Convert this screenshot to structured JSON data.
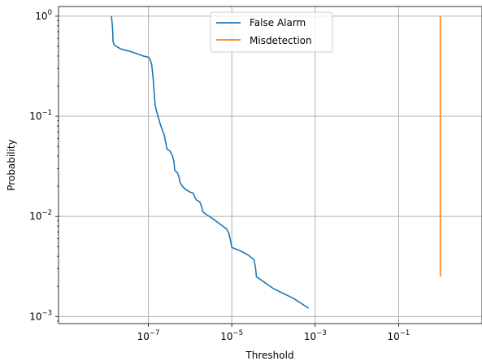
{
  "chart_data": {
    "type": "line",
    "xlabel": "Threshold",
    "ylabel": "Probability",
    "xscale": "log",
    "yscale": "log",
    "xlim": [
      7e-10,
      10
    ],
    "ylim": [
      0.00085,
      1.25
    ],
    "grid": true,
    "legend_position": "top-center",
    "x_ticks": [
      {
        "value": 1e-07,
        "base": "10",
        "exp": "−7"
      },
      {
        "value": 1e-05,
        "base": "10",
        "exp": "−5"
      },
      {
        "value": 0.001,
        "base": "10",
        "exp": "−3"
      },
      {
        "value": 0.1,
        "base": "10",
        "exp": "−1"
      }
    ],
    "y_ticks": [
      {
        "value": 0.001,
        "base": "10",
        "exp": "−3"
      },
      {
        "value": 0.01,
        "base": "10",
        "exp": "−2"
      },
      {
        "value": 0.1,
        "base": "10",
        "exp": "−1"
      },
      {
        "value": 1,
        "base": "10",
        "exp": "0"
      }
    ],
    "series": [
      {
        "name": "False Alarm",
        "color": "#1f77b4",
        "points": [
          [
            1.3e-08,
            1.0
          ],
          [
            1.38e-08,
            0.78
          ],
          [
            1.42e-08,
            0.56
          ],
          [
            1.5e-08,
            0.52
          ],
          [
            1.7e-08,
            0.5
          ],
          [
            2.2e-08,
            0.47
          ],
          [
            3e-08,
            0.455
          ],
          [
            4e-08,
            0.44
          ],
          [
            5.5e-08,
            0.42
          ],
          [
            7.5e-08,
            0.4
          ],
          [
            1e-07,
            0.39
          ],
          [
            1.1e-07,
            0.37
          ],
          [
            1.2e-07,
            0.33
          ],
          [
            1.3e-07,
            0.24
          ],
          [
            1.38e-07,
            0.17
          ],
          [
            1.45e-07,
            0.13
          ],
          [
            1.55e-07,
            0.115
          ],
          [
            1.7e-07,
            0.1
          ],
          [
            1.9e-07,
            0.085
          ],
          [
            2.1e-07,
            0.075
          ],
          [
            2.4e-07,
            0.065
          ],
          [
            2.6e-07,
            0.055
          ],
          [
            2.8e-07,
            0.047
          ],
          [
            3.3e-07,
            0.045
          ],
          [
            3.8e-07,
            0.04
          ],
          [
            4.1e-07,
            0.035
          ],
          [
            4.3e-07,
            0.029
          ],
          [
            5e-07,
            0.027
          ],
          [
            5.4e-07,
            0.025
          ],
          [
            5.7e-07,
            0.022
          ],
          [
            6.5e-07,
            0.02
          ],
          [
            8e-07,
            0.0185
          ],
          [
            1e-06,
            0.0175
          ],
          [
            1.2e-06,
            0.017
          ],
          [
            1.3e-06,
            0.0155
          ],
          [
            1.45e-06,
            0.0145
          ],
          [
            1.7e-06,
            0.014
          ],
          [
            1.9e-06,
            0.0125
          ],
          [
            2e-06,
            0.0112
          ],
          [
            2.4e-06,
            0.0105
          ],
          [
            3.5e-06,
            0.0095
          ],
          [
            5e-06,
            0.0085
          ],
          [
            7.5e-06,
            0.0075
          ],
          [
            8.5e-06,
            0.0068
          ],
          [
            9.5e-06,
            0.0055
          ],
          [
            1e-05,
            0.0049
          ],
          [
            1.5e-05,
            0.0046
          ],
          [
            2.5e-05,
            0.0041
          ],
          [
            3.4e-05,
            0.0037
          ],
          [
            3.7e-05,
            0.0031
          ],
          [
            3.9e-05,
            0.0025
          ],
          [
            0.0001,
            0.0019
          ],
          [
            0.0003,
            0.00152
          ],
          [
            0.0007,
            0.00121
          ]
        ]
      },
      {
        "name": "Misdetection",
        "color": "#ff7f0e",
        "points": [
          [
            1.0,
            0.0025
          ],
          [
            1.0,
            1.0
          ]
        ]
      }
    ]
  }
}
